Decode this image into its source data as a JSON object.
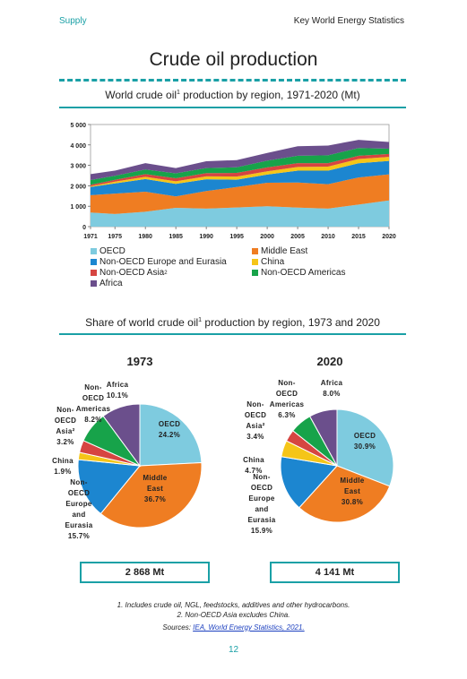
{
  "header": {
    "left": "Supply",
    "right": "Key World Energy Statistics"
  },
  "page_title": "Crude oil production",
  "section1": {
    "title": "World crude oil",
    "sup": "1",
    "title_rest": " production by region, 1971-2020 (Mt)"
  },
  "section2": {
    "title": "Share of world crude oil",
    "sup": "1",
    "title_rest": " production by region, 1973 and 2020"
  },
  "legend": [
    {
      "label": "OECD",
      "sup": "",
      "color": "#7ecbdf"
    },
    {
      "label": "Middle East",
      "sup": "",
      "color": "#ef7d22"
    },
    {
      "label": "Non-OECD Europe and Eurasia",
      "sup": "",
      "color": "#1c86d0"
    },
    {
      "label": "China",
      "sup": "",
      "color": "#f5c518"
    },
    {
      "label": "Non-OECD Asia",
      "sup": "2",
      "color": "#d64541"
    },
    {
      "label": "Non-OECD Americas",
      "sup": "",
      "color": "#17a34a"
    },
    {
      "label": "Africa",
      "sup": "",
      "color": "#6b4f8c"
    }
  ],
  "chart_data": [
    {
      "type": "area",
      "stacked": true,
      "x": [
        1971,
        1975,
        1980,
        1985,
        1990,
        1995,
        2000,
        2005,
        2010,
        2015,
        2020
      ],
      "xticks": [
        "1971",
        "1975",
        "1980",
        "1985",
        "1990",
        "1995",
        "2000",
        "2005",
        "2010",
        "2015",
        "2020"
      ],
      "ylim": [
        0,
        5000
      ],
      "yticks": [
        "0",
        "1 000",
        "2 000",
        "3 000",
        "4 000",
        "5 000"
      ],
      "grid": false,
      "legend_position": "bottom",
      "series": [
        {
          "name": "OECD",
          "color": "#7ecbdf",
          "values": [
            690,
            620,
            730,
            920,
            880,
            940,
            1000,
            930,
            880,
            1080,
            1280
          ]
        },
        {
          "name": "Middle East",
          "color": "#ef7d22",
          "values": [
            850,
            1000,
            980,
            560,
            860,
            1000,
            1150,
            1230,
            1200,
            1330,
            1280
          ]
        },
        {
          "name": "Non-OECD Europe and Eurasia",
          "color": "#1c86d0",
          "values": [
            400,
            500,
            620,
            610,
            580,
            360,
            400,
            580,
            660,
            690,
            660
          ]
        },
        {
          "name": "China",
          "color": "#f5c518",
          "values": [
            40,
            80,
            110,
            130,
            140,
            150,
            160,
            180,
            200,
            210,
            195
          ]
        },
        {
          "name": "Non-OECD Asia",
          "color": "#d64541",
          "values": [
            70,
            90,
            130,
            150,
            160,
            180,
            190,
            190,
            170,
            160,
            140
          ]
        },
        {
          "name": "Non-OECD Americas",
          "color": "#17a34a",
          "values": [
            230,
            200,
            230,
            240,
            250,
            280,
            330,
            360,
            380,
            380,
            260
          ]
        },
        {
          "name": "Africa",
          "color": "#6b4f8c",
          "values": [
            290,
            250,
            310,
            260,
            330,
            350,
            380,
            470,
            480,
            400,
            330
          ]
        }
      ]
    },
    {
      "type": "pie",
      "title": "1973",
      "total": "2 868 Mt",
      "slices": [
        {
          "name": "OECD",
          "value": 24.2,
          "label": [
            "OECD",
            "24.2%"
          ],
          "color": "#7ecbdf"
        },
        {
          "name": "Middle East",
          "value": 36.7,
          "label": [
            "Middle",
            "East",
            "36.7%"
          ],
          "color": "#ef7d22"
        },
        {
          "name": "Non-OECD Europe and Eurasia",
          "value": 15.7,
          "label": [
            "Non-",
            "OECD",
            "Europe",
            "and",
            "Eurasia",
            "15.7%"
          ],
          "color": "#1c86d0"
        },
        {
          "name": "China",
          "value": 1.9,
          "label": [
            "China",
            "1.9%"
          ],
          "color": "#f5c518"
        },
        {
          "name": "Non-OECD Asia",
          "value": 3.2,
          "label": [
            "Non-",
            "OECD",
            "Asia²",
            "3.2%"
          ],
          "color": "#d64541"
        },
        {
          "name": "Non-OECD Americas",
          "value": 8.2,
          "label": [
            "Non-",
            "OECD",
            "Americas",
            "8.2%"
          ],
          "color": "#17a34a"
        },
        {
          "name": "Africa",
          "value": 10.1,
          "label": [
            "Africa",
            "10.1%"
          ],
          "color": "#6b4f8c"
        }
      ]
    },
    {
      "type": "pie",
      "title": "2020",
      "total": "4 141 Mt",
      "slices": [
        {
          "name": "OECD",
          "value": 30.9,
          "label": [
            "OECD",
            "30.9%"
          ],
          "color": "#7ecbdf"
        },
        {
          "name": "Middle East",
          "value": 30.8,
          "label": [
            "Middle",
            "East",
            "30.8%"
          ],
          "color": "#ef7d22"
        },
        {
          "name": "Non-OECD Europe and Eurasia",
          "value": 15.9,
          "label": [
            "Non-",
            "OECD",
            "Europe",
            "and",
            "Eurasia",
            "15.9%"
          ],
          "color": "#1c86d0"
        },
        {
          "name": "China",
          "value": 4.7,
          "label": [
            "China",
            "4.7%"
          ],
          "color": "#f5c518"
        },
        {
          "name": "Non-OECD Asia",
          "value": 3.4,
          "label": [
            "Non-",
            "OECD",
            "Asia²",
            "3.4%"
          ],
          "color": "#d64541"
        },
        {
          "name": "Non-OECD Americas",
          "value": 6.3,
          "label": [
            "Non-",
            "OECD",
            "Americas",
            "6.3%"
          ],
          "color": "#17a34a"
        },
        {
          "name": "Africa",
          "value": 8.0,
          "label": [
            "Africa",
            "8.0%"
          ],
          "color": "#6b4f8c"
        }
      ]
    }
  ],
  "notes": {
    "note1": "1. Includes crude oil, NGL, feedstocks, additives and other hydrocarbons.",
    "note2": "2. Non-OECD Asia excludes China.",
    "sources_prefix": "Sources: ",
    "sources_link": "IEA, World Energy Statistics, 2021."
  },
  "page_number": "12"
}
